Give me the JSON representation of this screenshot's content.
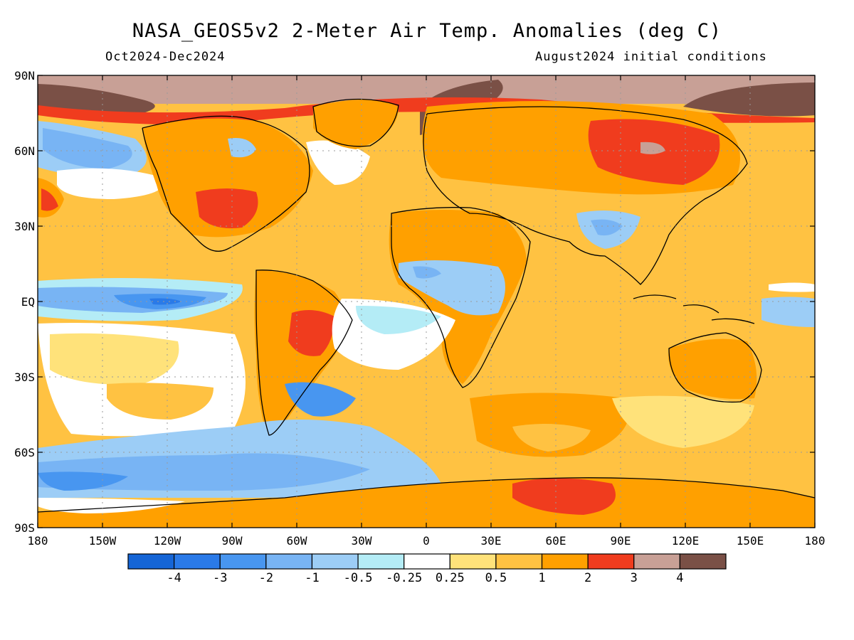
{
  "title": "NASA_GEOS5v2 2-Meter Air Temp. Anomalies (deg C)",
  "subtitle_left": "Oct2024-Dec2024",
  "subtitle_right": "August2024 initial conditions",
  "lat_labels": [
    "90N",
    "60N",
    "30N",
    "EQ",
    "30S",
    "60S",
    "90S"
  ],
  "lon_labels": [
    "180",
    "150W",
    "120W",
    "90W",
    "60W",
    "30W",
    "0",
    "30E",
    "60E",
    "90E",
    "120E",
    "150E",
    "180"
  ],
  "colorbar": {
    "colors": [
      "#1565d6",
      "#2a7ae8",
      "#4896f0",
      "#78b4f4",
      "#9ccdf6",
      "#b4ecf6",
      "#ffffff",
      "#ffe27a",
      "#ffc242",
      "#ffa000",
      "#f03c1e",
      "#c8a096",
      "#7a5046"
    ],
    "labels": [
      "-4",
      "-3",
      "-2",
      "-1",
      "-0.5",
      "-0.25",
      "0.25",
      "0.5",
      "1",
      "2",
      "3",
      "4"
    ]
  }
}
